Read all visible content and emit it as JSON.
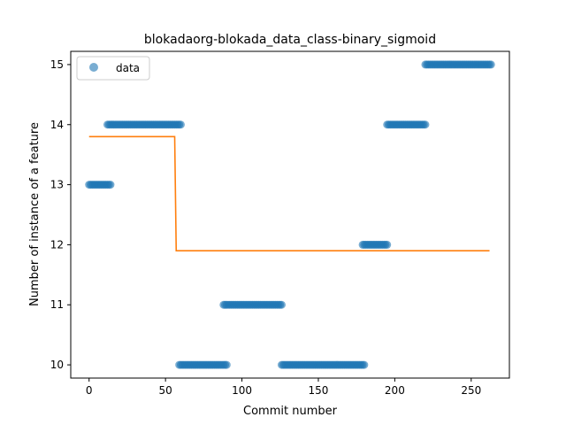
{
  "chart_data": {
    "type": "scatter",
    "title": "blokadaorg-blokada_data_class-binary_sigmoid",
    "xlabel": "Commit number",
    "ylabel": "Number of instance of a feature",
    "xlim": [
      -12,
      275
    ],
    "ylim": [
      9.78,
      15.22
    ],
    "xticks": [
      0,
      50,
      100,
      150,
      200,
      250
    ],
    "yticks": [
      10,
      11,
      12,
      13,
      14,
      15
    ],
    "legend": {
      "position": "top-left",
      "entries": [
        "data"
      ]
    },
    "grid": false,
    "colors": {
      "points": "#1f77b4",
      "fit": "#ff7f0e"
    },
    "segments": [
      {
        "x_start": 0,
        "x_end": 14,
        "y": 13
      },
      {
        "x_start": 12,
        "x_end": 60,
        "y": 14
      },
      {
        "x_start": 59,
        "x_end": 90,
        "y": 10
      },
      {
        "x_start": 88,
        "x_end": 126,
        "y": 11
      },
      {
        "x_start": 126,
        "x_end": 180,
        "y": 10
      },
      {
        "x_start": 179,
        "x_end": 195,
        "y": 12
      },
      {
        "x_start": 195,
        "x_end": 220,
        "y": 14
      },
      {
        "x_start": 220,
        "x_end": 263,
        "y": 15
      }
    ],
    "fit_line": {
      "x": [
        0,
        56,
        57,
        262
      ],
      "y": [
        13.8,
        13.8,
        11.9,
        11.9
      ]
    }
  }
}
